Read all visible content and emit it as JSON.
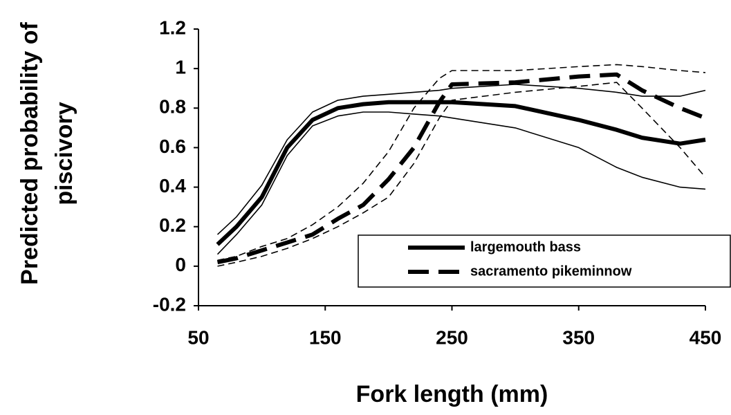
{
  "chart_data": {
    "type": "line",
    "x_label": "Fork length (mm)",
    "y_label": [
      "Predicted probability of",
      "piscivory"
    ],
    "x": [
      65,
      80,
      100,
      120,
      140,
      160,
      180,
      200,
      220,
      240,
      250,
      300,
      350,
      380,
      400,
      430,
      450
    ],
    "series": [
      {
        "name": "largemouth bass",
        "color": "#000000",
        "style": "solid",
        "values": [
          0.11,
          0.2,
          0.35,
          0.6,
          0.74,
          0.8,
          0.82,
          0.83,
          0.83,
          0.83,
          0.83,
          0.81,
          0.74,
          0.69,
          0.65,
          0.62,
          0.64
        ],
        "upper": [
          0.16,
          0.25,
          0.41,
          0.64,
          0.78,
          0.84,
          0.86,
          0.87,
          0.88,
          0.89,
          0.9,
          0.92,
          0.9,
          0.88,
          0.86,
          0.86,
          0.89
        ],
        "lower": [
          0.06,
          0.16,
          0.31,
          0.56,
          0.71,
          0.76,
          0.78,
          0.78,
          0.77,
          0.76,
          0.75,
          0.7,
          0.6,
          0.5,
          0.45,
          0.4,
          0.39
        ]
      },
      {
        "name": "sacramento pikeminnow",
        "color": "#000000",
        "style": "dashed",
        "values": [
          0.02,
          0.04,
          0.08,
          0.12,
          0.16,
          0.24,
          0.31,
          0.44,
          0.6,
          0.83,
          0.92,
          0.93,
          0.96,
          0.97,
          0.89,
          0.8,
          0.75
        ],
        "upper": [
          0.03,
          0.05,
          0.1,
          0.14,
          0.21,
          0.3,
          0.42,
          0.58,
          0.8,
          0.95,
          0.99,
          0.99,
          1.01,
          1.02,
          1.01,
          0.99,
          0.98
        ],
        "lower": [
          0,
          0.02,
          0.05,
          0.09,
          0.14,
          0.2,
          0.27,
          0.35,
          0.52,
          0.75,
          0.84,
          0.88,
          0.91,
          0.93,
          0.8,
          0.6,
          0.45
        ]
      }
    ],
    "xlim": [
      50,
      450
    ],
    "xticks": [
      50,
      150,
      250,
      350,
      450
    ],
    "ylim": [
      -0.2,
      1.2
    ],
    "yticks": [
      -0.2,
      0,
      0.2,
      0.4,
      0.6,
      0.8,
      1,
      1.2
    ],
    "grid": false,
    "legend": "lower right"
  }
}
